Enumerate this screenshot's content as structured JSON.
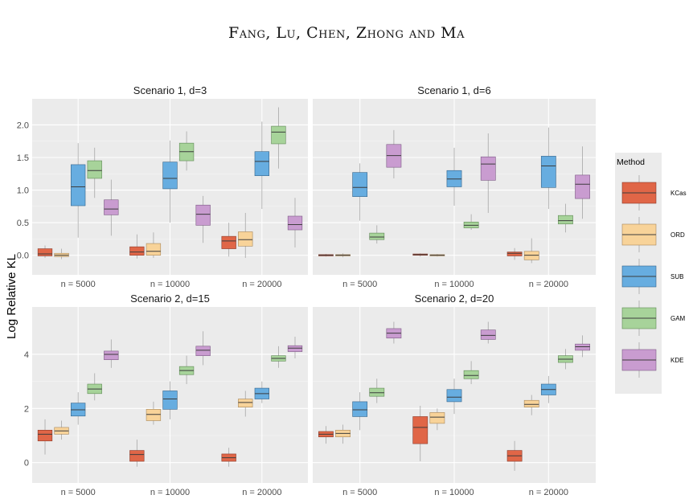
{
  "header": "Fang, Lu, Chen, Zhong and Ma",
  "y_axis_label": "Log Relative KL",
  "legend": {
    "title": "Method",
    "items": [
      {
        "name": "KCas",
        "fill": "#E06647",
        "line": "#8B3A2A"
      },
      {
        "name": "ORD",
        "fill": "#F8D399",
        "line": "#A8875A"
      },
      {
        "name": "SUB",
        "fill": "#67ADE0",
        "line": "#35648A"
      },
      {
        "name": "GAM",
        "fill": "#A7D39A",
        "line": "#5F8A55"
      },
      {
        "name": "KDE",
        "fill": "#C99CD0",
        "line": "#7D5A85"
      }
    ]
  },
  "chart_data": [
    {
      "type": "box",
      "title": "Scenario 1, d=3",
      "ylabel": "Log Relative KL",
      "categories": [
        "n = 5000",
        "n = 10000",
        "n = 20000"
      ],
      "yticks": [
        0.0,
        0.5,
        1.0,
        1.5,
        2.0
      ],
      "ytick_labels": [
        "0.0",
        "0.5",
        "1.0",
        "1.5",
        "2.0"
      ],
      "ylim": [
        -0.3,
        2.4
      ],
      "series": [
        {
          "name": "KCas",
          "boxes": [
            [
              -0.04,
              -0.01,
              0.02,
              0.1,
              0.15
            ],
            [
              -0.05,
              0.0,
              0.05,
              0.13,
              0.32
            ],
            [
              -0.02,
              0.1,
              0.22,
              0.29,
              0.5
            ]
          ]
        },
        {
          "name": "ORD",
          "boxes": [
            [
              -0.06,
              -0.02,
              0.0,
              0.03,
              0.1
            ],
            [
              -0.04,
              0.0,
              0.06,
              0.18,
              0.35
            ],
            [
              -0.04,
              0.14,
              0.24,
              0.36,
              0.65
            ]
          ]
        },
        {
          "name": "SUB",
          "boxes": [
            [
              0.27,
              0.76,
              1.05,
              1.39,
              1.72
            ],
            [
              0.5,
              1.02,
              1.18,
              1.43,
              1.76
            ],
            [
              0.71,
              1.22,
              1.44,
              1.59,
              2.05
            ]
          ]
        },
        {
          "name": "GAM",
          "boxes": [
            [
              0.88,
              1.18,
              1.3,
              1.45,
              1.65
            ],
            [
              1.3,
              1.45,
              1.59,
              1.72,
              1.9
            ],
            [
              1.33,
              1.71,
              1.89,
              1.98,
              2.27
            ]
          ]
        },
        {
          "name": "KDE",
          "boxes": [
            [
              0.3,
              0.62,
              0.71,
              0.85,
              1.16
            ],
            [
              0.19,
              0.46,
              0.63,
              0.77,
              0.91
            ],
            [
              0.12,
              0.39,
              0.47,
              0.6,
              0.88
            ]
          ]
        }
      ]
    },
    {
      "type": "box",
      "title": "Scenario 1, d=6",
      "ylabel": "Log Relative KL",
      "categories": [
        "n = 5000",
        "n = 10000",
        "n = 20000"
      ],
      "yticks": [
        0.0,
        0.5,
        1.0,
        1.5,
        2.0
      ],
      "ytick_labels": [],
      "ylim": [
        -0.3,
        2.4
      ],
      "series": [
        {
          "name": "KCas",
          "boxes": [
            [
              -0.02,
              -0.01,
              0.0,
              0.01,
              0.02
            ],
            [
              -0.02,
              0.0,
              0.01,
              0.02,
              0.03
            ],
            [
              -0.07,
              -0.01,
              0.03,
              0.05,
              0.11
            ]
          ]
        },
        {
          "name": "ORD",
          "boxes": [
            [
              -0.03,
              -0.01,
              0.0,
              0.01,
              0.03
            ],
            [
              -0.02,
              -0.01,
              0.0,
              0.01,
              0.02
            ],
            [
              -0.12,
              -0.07,
              0.0,
              0.06,
              0.26
            ]
          ]
        },
        {
          "name": "SUB",
          "boxes": [
            [
              0.53,
              0.9,
              1.04,
              1.27,
              1.41
            ],
            [
              0.76,
              1.05,
              1.17,
              1.3,
              1.65
            ],
            [
              0.71,
              1.04,
              1.37,
              1.52,
              1.96
            ]
          ]
        },
        {
          "name": "GAM",
          "boxes": [
            [
              0.18,
              0.24,
              0.28,
              0.34,
              0.46
            ],
            [
              0.39,
              0.42,
              0.46,
              0.51,
              0.63
            ],
            [
              0.35,
              0.48,
              0.53,
              0.61,
              0.79
            ]
          ]
        },
        {
          "name": "KDE",
          "boxes": [
            [
              1.18,
              1.35,
              1.53,
              1.7,
              1.92
            ],
            [
              0.65,
              1.15,
              1.4,
              1.51,
              1.87
            ],
            [
              0.56,
              0.87,
              1.09,
              1.23,
              1.67
            ]
          ]
        }
      ]
    },
    {
      "type": "box",
      "title": "Scenario 2, d=15",
      "ylabel": "Log Relative KL",
      "categories": [
        "n = 5000",
        "n = 10000",
        "n = 20000"
      ],
      "yticks": [
        0,
        2,
        4
      ],
      "ytick_labels": [
        "0",
        "2",
        "4"
      ],
      "ylim": [
        -0.75,
        5.75
      ],
      "series": [
        {
          "name": "KCas",
          "boxes": [
            [
              0.3,
              0.8,
              1.05,
              1.2,
              1.6
            ],
            [
              -0.15,
              0.05,
              0.3,
              0.45,
              0.85
            ],
            [
              -0.15,
              0.05,
              0.18,
              0.32,
              0.55
            ]
          ]
        },
        {
          "name": "ORD",
          "boxes": [
            [
              0.85,
              1.05,
              1.17,
              1.3,
              1.55
            ],
            [
              1.4,
              1.55,
              1.78,
              1.97,
              2.25
            ],
            [
              1.7,
              2.05,
              2.22,
              2.35,
              2.65
            ]
          ]
        },
        {
          "name": "SUB",
          "boxes": [
            [
              1.4,
              1.72,
              1.95,
              2.2,
              2.6
            ],
            [
              1.6,
              1.97,
              2.35,
              2.65,
              3.0
            ],
            [
              2.2,
              2.35,
              2.55,
              2.75,
              3.0
            ]
          ]
        },
        {
          "name": "GAM",
          "boxes": [
            [
              2.3,
              2.55,
              2.72,
              2.9,
              3.3
            ],
            [
              2.9,
              3.25,
              3.4,
              3.55,
              3.95
            ],
            [
              3.5,
              3.75,
              3.85,
              3.95,
              4.3
            ]
          ]
        },
        {
          "name": "KDE",
          "boxes": [
            [
              3.5,
              3.8,
              4.0,
              4.12,
              4.55
            ],
            [
              3.6,
              3.95,
              4.15,
              4.3,
              4.85
            ],
            [
              3.85,
              4.1,
              4.23,
              4.32,
              4.65
            ]
          ]
        }
      ]
    },
    {
      "type": "box",
      "title": "Scenario 2, d=20",
      "ylabel": "Log Relative KL",
      "categories": [
        "n = 5000",
        "n = 10000",
        "n = 20000"
      ],
      "yticks": [
        0,
        2,
        4
      ],
      "ytick_labels": [],
      "ylim": [
        -0.75,
        5.75
      ],
      "series": [
        {
          "name": "KCas",
          "boxes": [
            [
              0.7,
              0.95,
              1.05,
              1.15,
              1.35
            ],
            [
              0.05,
              0.7,
              1.3,
              1.7,
              2.1
            ],
            [
              -0.3,
              0.05,
              0.25,
              0.45,
              0.8
            ]
          ]
        },
        {
          "name": "ORD",
          "boxes": [
            [
              0.7,
              0.95,
              1.08,
              1.2,
              1.4
            ],
            [
              1.2,
              1.45,
              1.68,
              1.85,
              2.0
            ],
            [
              1.75,
              2.05,
              2.15,
              2.3,
              2.5
            ]
          ]
        },
        {
          "name": "SUB",
          "boxes": [
            [
              1.2,
              1.7,
              1.95,
              2.25,
              2.6
            ],
            [
              1.8,
              2.25,
              2.42,
              2.7,
              3.1
            ],
            [
              2.2,
              2.5,
              2.7,
              2.9,
              3.2
            ]
          ]
        },
        {
          "name": "GAM",
          "boxes": [
            [
              2.2,
              2.45,
              2.58,
              2.75,
              3.1
            ],
            [
              2.9,
              3.1,
              3.22,
              3.4,
              3.75
            ],
            [
              3.45,
              3.7,
              3.82,
              3.95,
              4.2
            ]
          ]
        },
        {
          "name": "KDE",
          "boxes": [
            [
              4.4,
              4.6,
              4.78,
              4.95,
              5.2
            ],
            [
              4.4,
              4.55,
              4.7,
              4.9,
              5.2
            ],
            [
              3.9,
              4.15,
              4.28,
              4.38,
              4.7
            ]
          ]
        }
      ]
    }
  ]
}
